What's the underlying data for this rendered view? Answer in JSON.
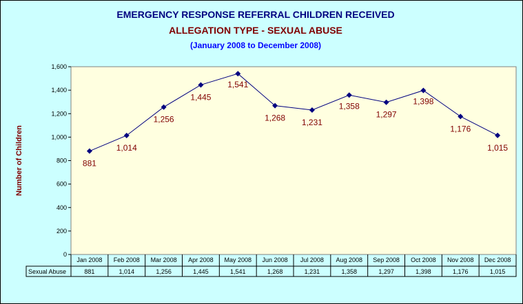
{
  "chart_data": {
    "type": "line",
    "title": "EMERGENCY RESPONSE REFERRAL CHILDREN RECEIVED",
    "subtitle": "ALLEGATION TYPE - SEXUAL ABUSE",
    "period": "(January 2008 to December 2008)",
    "ylabel": "Number of Children",
    "xlabel": "",
    "ylim": [
      0,
      1600
    ],
    "y_ticks": [
      "0",
      "200",
      "400",
      "600",
      "800",
      "1,000",
      "1,200",
      "1,400",
      "1,600"
    ],
    "categories": [
      "Jan 2008",
      "Feb 2008",
      "Mar 2008",
      "Apr 2008",
      "May 2008",
      "Jun 2008",
      "Jul 2008",
      "Aug 2008",
      "Sep 2008",
      "Oct 2008",
      "Nov 2008",
      "Dec 2008"
    ],
    "series": [
      {
        "name": "Sexual Abuse",
        "values": [
          881,
          1014,
          1256,
          1445,
          1541,
          1268,
          1231,
          1358,
          1297,
          1398,
          1176,
          1015
        ],
        "labels": [
          "881",
          "1,014",
          "1,256",
          "1,445",
          "1,541",
          "1,268",
          "1,231",
          "1,358",
          "1,297",
          "1,398",
          "1,176",
          "1,015"
        ]
      }
    ],
    "data_table": true,
    "grid": false,
    "colors": {
      "line": "#000080",
      "marker": "#000080",
      "data_label": "#800000",
      "plot_background": "#ffffe0",
      "page_background": "#ccffff"
    }
  }
}
